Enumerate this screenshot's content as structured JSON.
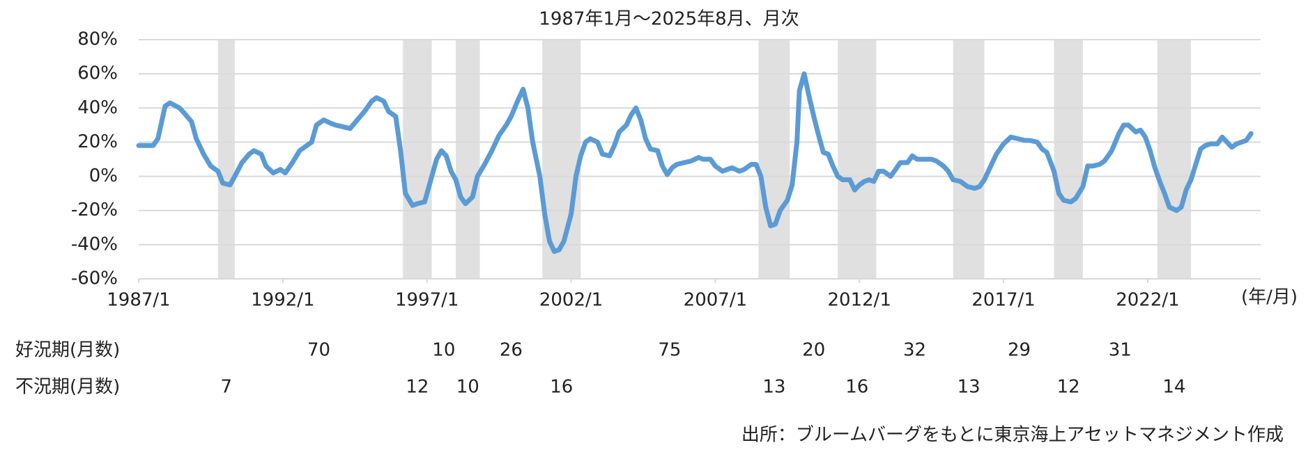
{
  "chart_data": {
    "type": "line",
    "title": "1987年1月～2025年8月、月次",
    "x_unit_label": "(年/月)",
    "source": "出所：ブルームバーグをもとに東京海上アセットマネジメント作成",
    "color": "#5b9bd5",
    "band_color": "#e0e0e0",
    "grid": true,
    "xlim": [
      "1987/1",
      "2025/12"
    ],
    "xticks": [
      "1987/1",
      "1992/1",
      "1997/1",
      "2002/1",
      "2007/1",
      "2012/1",
      "2017/1",
      "2022/1"
    ],
    "ylim": [
      -60,
      80
    ],
    "yticks": [
      {
        "value": 80,
        "label": "80%"
      },
      {
        "value": 60,
        "label": "60%"
      },
      {
        "value": 40,
        "label": "40%"
      },
      {
        "value": 20,
        "label": "20%"
      },
      {
        "value": 0,
        "label": "0%"
      },
      {
        "value": -20,
        "label": "-20%"
      },
      {
        "value": -40,
        "label": "-40%"
      },
      {
        "value": -60,
        "label": "-60%"
      }
    ],
    "x": [
      "1987/1",
      "1987/7",
      "1987/9",
      "1987/12",
      "1988/2",
      "1988/6",
      "1988/8",
      "1988/11",
      "1989/1",
      "1989/4",
      "1989/7",
      "1989/10",
      "1989/12",
      "1990/3",
      "1990/5",
      "1990/8",
      "1990/11",
      "1991/1",
      "1991/4",
      "1991/6",
      "1991/9",
      "1991/12",
      "1992/2",
      "1992/5",
      "1992/8",
      "1992/11",
      "1993/1",
      "1993/3",
      "1993/6",
      "1993/9",
      "1993/11",
      "1994/2",
      "1994/5",
      "1994/8",
      "1994/11",
      "1995/2",
      "1995/4",
      "1995/7",
      "1995/9",
      "1995/12",
      "1996/2",
      "1996/4",
      "1996/7",
      "1996/9",
      "1996/12",
      "1997/2",
      "1997/5",
      "1997/7",
      "1997/9",
      "1997/11",
      "1998/1",
      "1998/3",
      "1998/5",
      "1998/8",
      "1998/10",
      "1999/1",
      "1999/4",
      "1999/7",
      "1999/10",
      "1999/12",
      "2000/3",
      "2000/5",
      "2000/7",
      "2000/9",
      "2000/12",
      "2001/2",
      "2001/4",
      "2001/6",
      "2001/8",
      "2001/10",
      "2002/1",
      "2002/3",
      "2002/5",
      "2002/7",
      "2002/9",
      "2002/12",
      "2003/2",
      "2003/5",
      "2003/7",
      "2003/9",
      "2003/12",
      "2004/2",
      "2004/4",
      "2004/6",
      "2004/8",
      "2004/10",
      "2005/1",
      "2005/3",
      "2005/5",
      "2005/7",
      "2005/9",
      "2005/12",
      "2006/3",
      "2006/6",
      "2006/8",
      "2006/11",
      "2007/1",
      "2007/4",
      "2007/6",
      "2007/8",
      "2007/11",
      "2008/1",
      "2008/4",
      "2008/6",
      "2008/8",
      "2008/10",
      "2008/12",
      "2009/2",
      "2009/4",
      "2009/7",
      "2009/9",
      "2009/11",
      "2009/12",
      "2010/2",
      "2010/4",
      "2010/6",
      "2010/8",
      "2010/10",
      "2010/12",
      "2011/2",
      "2011/4",
      "2011/6",
      "2011/9",
      "2011/11",
      "2012/1",
      "2012/3",
      "2012/5",
      "2012/7",
      "2012/9",
      "2012/11",
      "2013/2",
      "2013/4",
      "2013/6",
      "2013/9",
      "2013/11",
      "2014/1",
      "2014/4",
      "2014/7",
      "2014/9",
      "2014/12",
      "2015/2",
      "2015/4",
      "2015/7",
      "2015/10",
      "2016/1",
      "2016/3",
      "2016/5",
      "2016/7",
      "2016/10",
      "2017/1",
      "2017/4",
      "2017/7",
      "2017/10",
      "2017/12",
      "2018/3",
      "2018/5",
      "2018/7",
      "2018/10",
      "2018/12",
      "2019/2",
      "2019/5",
      "2019/7",
      "2019/10",
      "2019/12",
      "2020/2",
      "2020/5",
      "2020/7",
      "2020/10",
      "2021/1",
      "2021/3",
      "2021/5",
      "2021/8",
      "2021/10",
      "2021/12",
      "2022/2",
      "2022/4",
      "2022/6",
      "2022/8",
      "2022/10",
      "2023/1",
      "2023/3",
      "2023/5",
      "2023/7",
      "2023/9",
      "2023/11",
      "2024/1",
      "2024/3",
      "2024/6",
      "2024/8",
      "2024/10",
      "2024/12",
      "2025/2",
      "2025/4",
      "2025/6",
      "2025/8"
    ],
    "values": [
      18,
      18,
      22,
      41,
      43,
      40,
      37,
      32,
      22,
      13,
      6,
      3,
      -4,
      -5,
      0,
      8,
      13,
      15,
      13,
      6,
      2,
      4,
      2,
      8,
      15,
      18,
      20,
      30,
      33,
      31,
      30,
      29,
      28,
      33,
      38,
      44,
      46,
      44,
      38,
      35,
      15,
      -10,
      -17,
      -16,
      -15,
      -5,
      10,
      15,
      12,
      3,
      -2,
      -12,
      -16,
      -12,
      0,
      7,
      15,
      24,
      30,
      35,
      45,
      51,
      40,
      20,
      0,
      -22,
      -38,
      -44,
      -43,
      -38,
      -22,
      0,
      12,
      20,
      22,
      20,
      13,
      12,
      18,
      26,
      30,
      36,
      40,
      33,
      22,
      16,
      15,
      6,
      1,
      5,
      7,
      8,
      9,
      11,
      10,
      10,
      6,
      3,
      4,
      5,
      3,
      4,
      7,
      7,
      0,
      -18,
      -29,
      -28,
      -20,
      -14,
      -5,
      20,
      50,
      60,
      47,
      35,
      24,
      14,
      13,
      6,
      0,
      -2,
      -2,
      -8,
      -5,
      -3,
      -2,
      -3,
      3,
      3,
      0,
      4,
      8,
      8,
      12,
      10,
      10,
      10,
      9,
      6,
      3,
      -2,
      -3,
      -6,
      -7,
      -6,
      -2,
      4,
      13,
      19,
      23,
      22,
      21,
      21,
      20,
      16,
      14,
      3,
      -10,
      -14,
      -15,
      -13,
      -6,
      6,
      6,
      7,
      9,
      15,
      25,
      30,
      30,
      26,
      27,
      23,
      15,
      5,
      -3,
      -10,
      -18,
      -20,
      -18,
      -8,
      -2,
      7,
      16,
      18,
      19,
      19,
      23,
      20,
      17,
      19,
      20,
      21,
      25
    ],
    "expansion_label": "好況期(月数)",
    "recession_label": "不況期(月数)",
    "recessions": [
      {
        "start": "1989/10",
        "end": "1990/5",
        "months": 7
      },
      {
        "start": "1996/3",
        "end": "1997/3",
        "months": 12
      },
      {
        "start": "1998/1",
        "end": "1998/11",
        "months": 10
      },
      {
        "start": "2001/1",
        "end": "2002/5",
        "months": 16
      },
      {
        "start": "2008/7",
        "end": "2009/8",
        "months": 13
      },
      {
        "start": "2011/4",
        "end": "2012/8",
        "months": 16
      },
      {
        "start": "2015/4",
        "end": "2016/5",
        "months": 13
      },
      {
        "start": "2018/10",
        "end": "2019/10",
        "months": 12
      },
      {
        "start": "2022/5",
        "end": "2023/7",
        "months": 14
      }
    ],
    "expansions": [
      70,
      10,
      26,
      75,
      20,
      32,
      29,
      31
    ]
  }
}
